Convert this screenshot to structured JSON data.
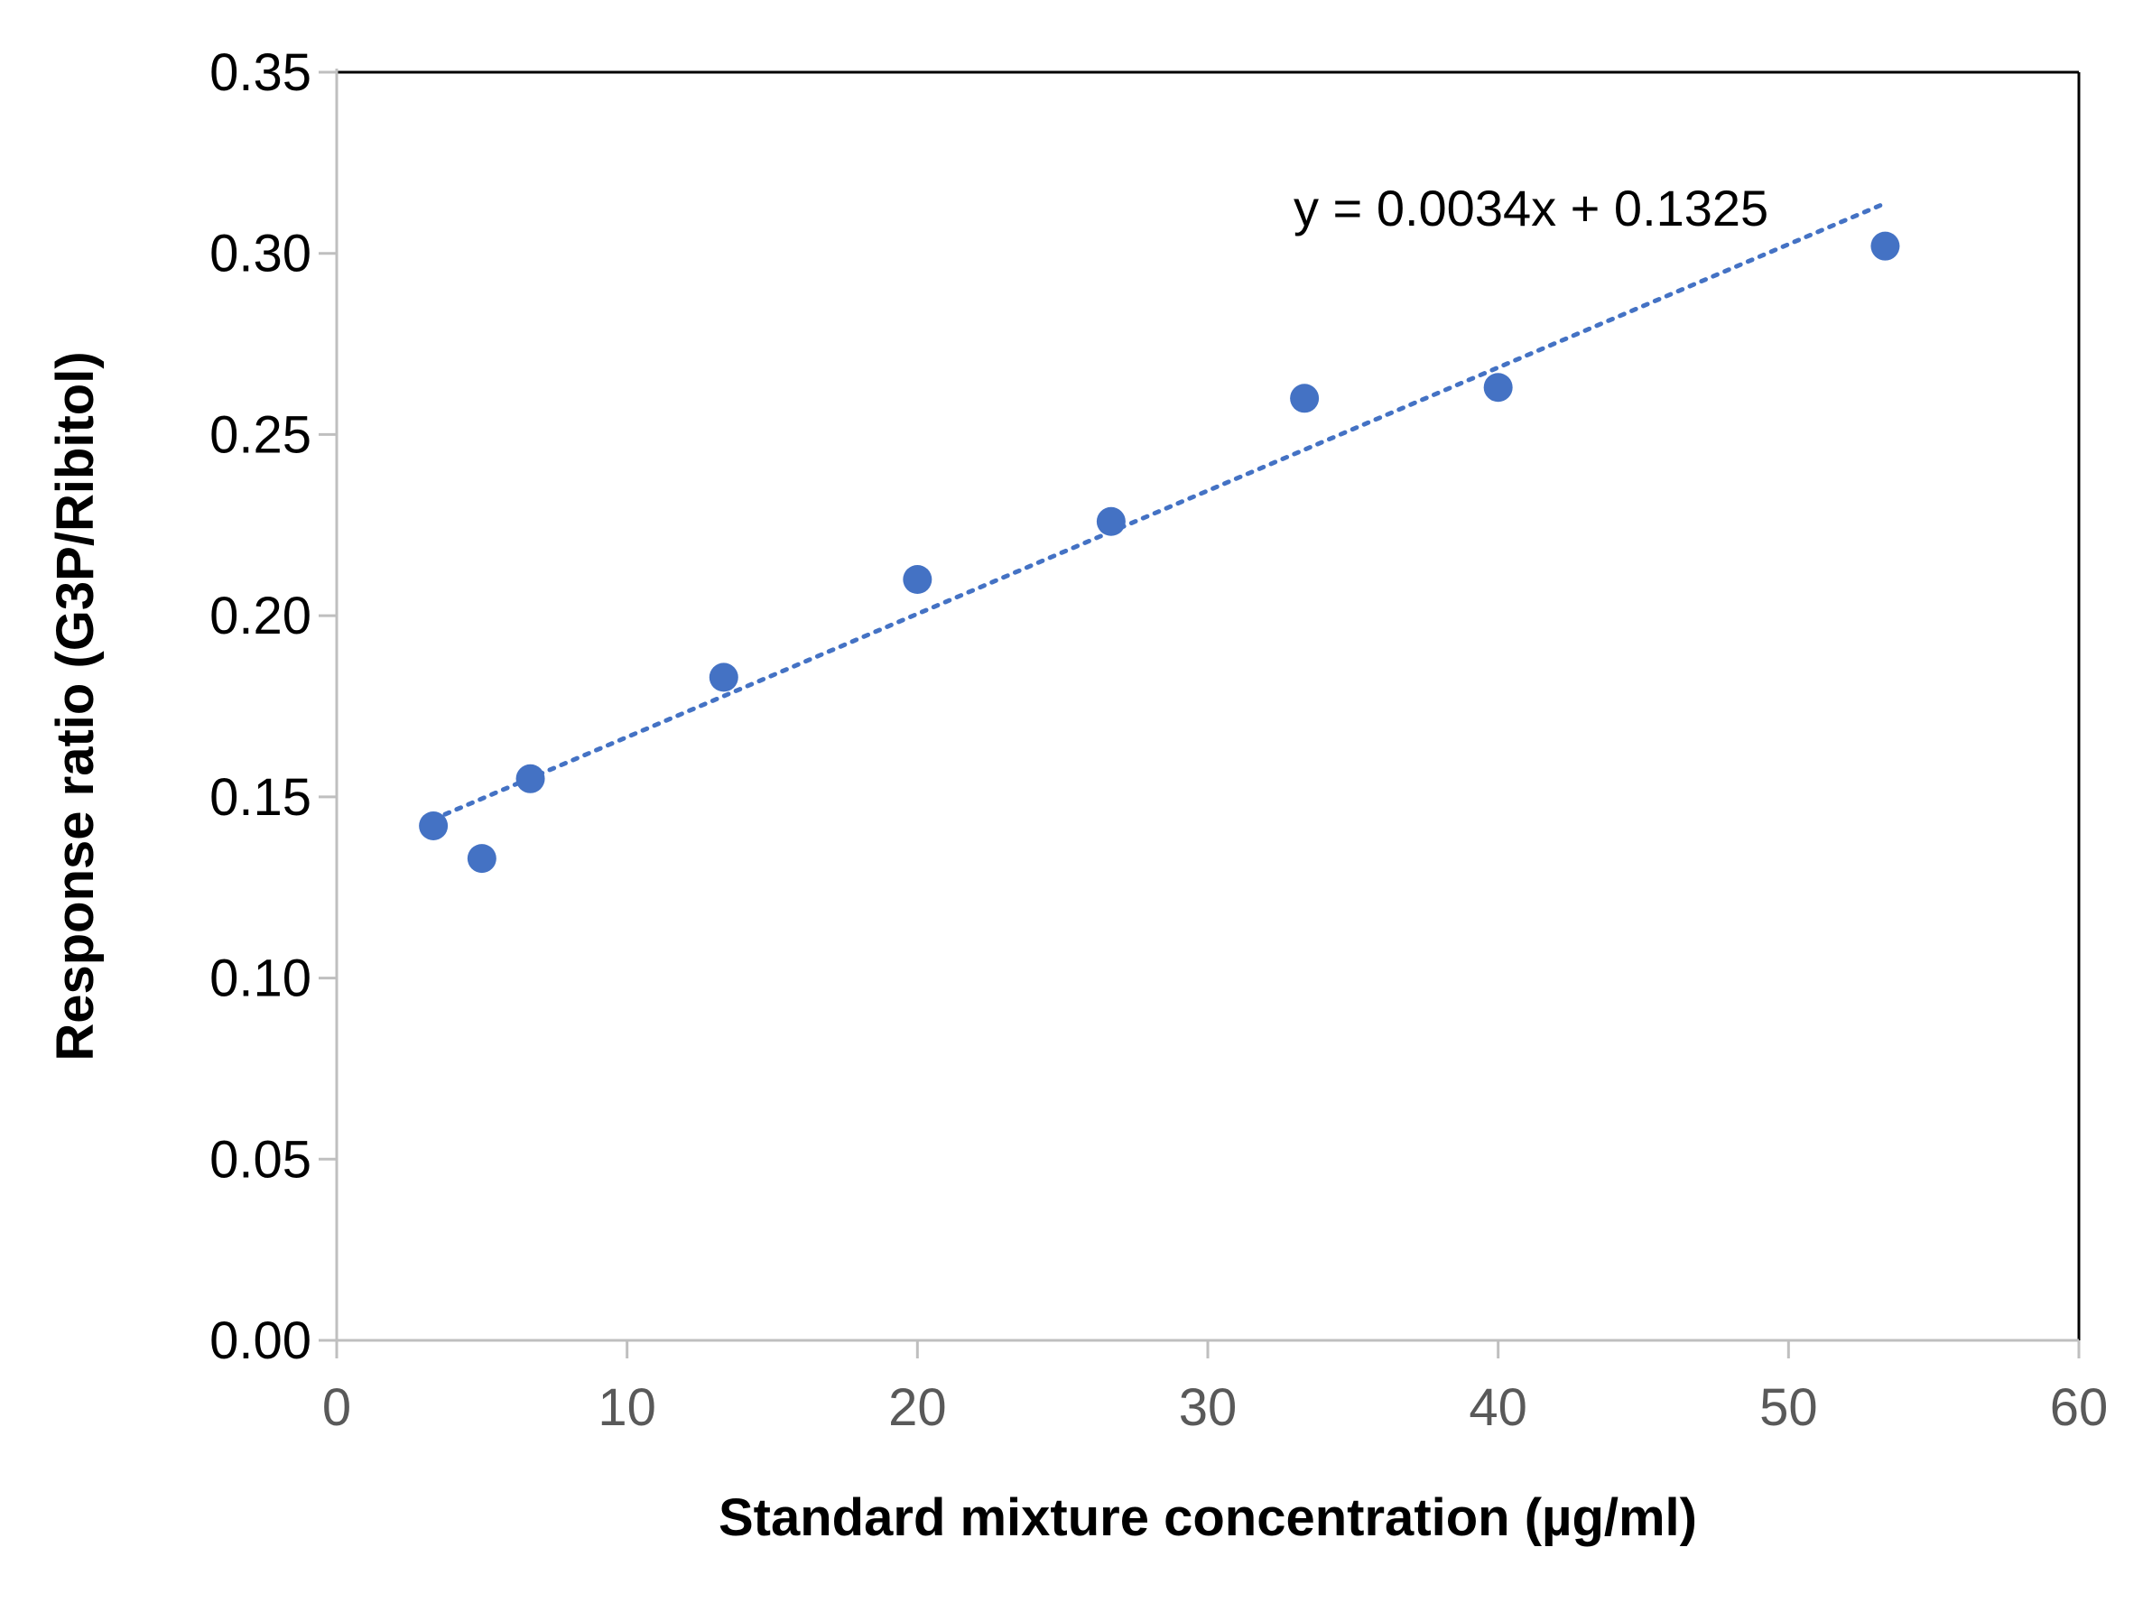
{
  "chart_data": {
    "type": "scatter",
    "title": "",
    "xlabel": "Standard mixture concentration (µg/ml)",
    "ylabel": "Response ratio (G3P/Ribitol)",
    "xlim": [
      0,
      60
    ],
    "ylim": [
      0,
      0.35
    ],
    "xticks": [
      "0",
      "10",
      "20",
      "30",
      "40",
      "50",
      "60"
    ],
    "yticks": [
      "0.00",
      "0.05",
      "0.10",
      "0.15",
      "0.20",
      "0.25",
      "0.30",
      "0.35"
    ],
    "grid": false,
    "legend": "none",
    "series": [
      {
        "color": "#4472C4",
        "x": [
          3.33,
          5.0,
          6.67,
          13.33,
          20.0,
          26.67,
          33.33,
          40.0,
          53.33
        ],
        "y": [
          0.142,
          0.133,
          0.155,
          0.183,
          0.21,
          0.226,
          0.26,
          0.263,
          0.302
        ]
      }
    ],
    "trendline": {
      "type": "linear",
      "style": "dotted",
      "color": "#4472C4",
      "slope": 0.0034,
      "intercept": 0.1325,
      "x_range": [
        3.33,
        53.33
      ],
      "equation": "y = 0.0034x + 0.1325"
    }
  }
}
